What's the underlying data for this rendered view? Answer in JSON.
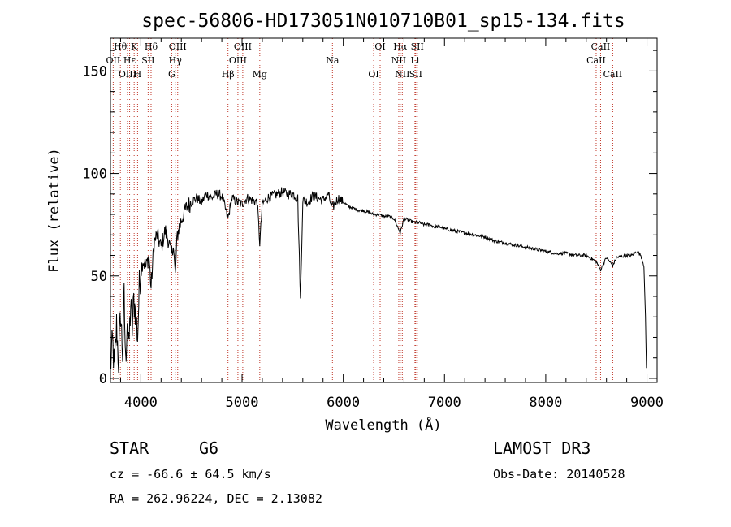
{
  "chart_data": {
    "type": "line",
    "title": "spec-56806-HD173051N010710B01_sp15-134.fits",
    "xlabel": "Wavelength (Å)",
    "ylabel": "Flux (relative)",
    "xlim": [
      3700,
      9100
    ],
    "ylim": [
      -2,
      166
    ],
    "x_ticks": [
      4000,
      5000,
      6000,
      7000,
      8000,
      9000
    ],
    "y_ticks": [
      0,
      50,
      100,
      150
    ],
    "grid": false,
    "series": [
      {
        "name": "spectrum",
        "anchors": [
          [
            3700,
            5
          ],
          [
            3720,
            18
          ],
          [
            3740,
            4
          ],
          [
            3760,
            26
          ],
          [
            3780,
            8
          ],
          [
            3800,
            32
          ],
          [
            3820,
            12
          ],
          [
            3835,
            40
          ],
          [
            3850,
            6
          ],
          [
            3865,
            30
          ],
          [
            3880,
            14
          ],
          [
            3900,
            36
          ],
          [
            3915,
            24
          ],
          [
            3930,
            38
          ],
          [
            3950,
            32
          ],
          [
            3968,
            20
          ],
          [
            3985,
            45
          ],
          [
            4000,
            52
          ],
          [
            4020,
            58
          ],
          [
            4050,
            54
          ],
          [
            4080,
            60
          ],
          [
            4101,
            44
          ],
          [
            4130,
            66
          ],
          [
            4160,
            70
          ],
          [
            4200,
            64
          ],
          [
            4240,
            72
          ],
          [
            4270,
            68
          ],
          [
            4300,
            60
          ],
          [
            4320,
            66
          ],
          [
            4340,
            50
          ],
          [
            4360,
            70
          ],
          [
            4380,
            74
          ],
          [
            4420,
            80
          ],
          [
            4460,
            84
          ],
          [
            4500,
            86
          ],
          [
            4550,
            88
          ],
          [
            4600,
            86
          ],
          [
            4650,
            90
          ],
          [
            4700,
            88
          ],
          [
            4750,
            90
          ],
          [
            4800,
            89
          ],
          [
            4861,
            78
          ],
          [
            4900,
            88
          ],
          [
            4950,
            86
          ],
          [
            5000,
            85
          ],
          [
            5050,
            88
          ],
          [
            5100,
            87
          ],
          [
            5150,
            86
          ],
          [
            5175,
            66
          ],
          [
            5200,
            85
          ],
          [
            5250,
            88
          ],
          [
            5300,
            89
          ],
          [
            5350,
            90
          ],
          [
            5400,
            91
          ],
          [
            5450,
            90
          ],
          [
            5500,
            90
          ],
          [
            5550,
            88
          ],
          [
            5577,
            38
          ],
          [
            5600,
            87
          ],
          [
            5650,
            86
          ],
          [
            5700,
            89
          ],
          [
            5750,
            88
          ],
          [
            5800,
            87
          ],
          [
            5850,
            90
          ],
          [
            5890,
            83
          ],
          [
            5950,
            88
          ],
          [
            6000,
            86
          ],
          [
            6050,
            84
          ],
          [
            6100,
            83
          ],
          [
            6150,
            82
          ],
          [
            6200,
            82
          ],
          [
            6250,
            81
          ],
          [
            6300,
            80
          ],
          [
            6350,
            80
          ],
          [
            6400,
            79
          ],
          [
            6450,
            79
          ],
          [
            6500,
            78
          ],
          [
            6563,
            71
          ],
          [
            6600,
            78
          ],
          [
            6650,
            77
          ],
          [
            6700,
            76
          ],
          [
            6750,
            76
          ],
          [
            6800,
            75
          ],
          [
            6850,
            75
          ],
          [
            6900,
            74
          ],
          [
            6950,
            74
          ],
          [
            7000,
            73
          ],
          [
            7100,
            72
          ],
          [
            7200,
            71
          ],
          [
            7300,
            70
          ],
          [
            7400,
            69
          ],
          [
            7500,
            67
          ],
          [
            7600,
            66
          ],
          [
            7700,
            65
          ],
          [
            7800,
            64
          ],
          [
            7900,
            63
          ],
          [
            8000,
            62
          ],
          [
            8100,
            61
          ],
          [
            8200,
            61
          ],
          [
            8300,
            60
          ],
          [
            8400,
            60
          ],
          [
            8498,
            57
          ],
          [
            8542,
            53
          ],
          [
            8600,
            59
          ],
          [
            8662,
            55
          ],
          [
            8700,
            59
          ],
          [
            8800,
            60
          ],
          [
            8850,
            60
          ],
          [
            8900,
            62
          ],
          [
            8940,
            60
          ],
          [
            8970,
            55
          ],
          [
            8985,
            30
          ],
          [
            8995,
            5
          ]
        ]
      }
    ],
    "line_markers": [
      {
        "label": "Hθ",
        "wl": 3798,
        "row": 0
      },
      {
        "label": "K",
        "wl": 3934,
        "row": 0
      },
      {
        "label": "Hδ",
        "wl": 4101,
        "row": 0
      },
      {
        "label": "OIII",
        "wl": 4364,
        "row": 0
      },
      {
        "label": "OIII",
        "wl": 5007,
        "row": 0
      },
      {
        "label": "OI",
        "wl": 6364,
        "row": 0
      },
      {
        "label": "Hα",
        "wl": 6563,
        "row": 0
      },
      {
        "label": "SII",
        "wl": 6731,
        "row": 0
      },
      {
        "label": "CaII",
        "wl": 8542,
        "row": 0
      },
      {
        "label": "OII",
        "wl": 3727,
        "row": 1
      },
      {
        "label": "Hε",
        "wl": 3889,
        "row": 1
      },
      {
        "label": "SII",
        "wl": 4072,
        "row": 1
      },
      {
        "label": "Hγ",
        "wl": 4340,
        "row": 1
      },
      {
        "label": "OIII",
        "wl": 4959,
        "row": 1
      },
      {
        "label": "Na",
        "wl": 5893,
        "row": 1
      },
      {
        "label": "NII",
        "wl": 6548,
        "row": 1
      },
      {
        "label": "Li",
        "wl": 6708,
        "row": 1
      },
      {
        "label": "CaII",
        "wl": 8498,
        "row": 1
      },
      {
        "label": "OIII",
        "wl": 3868,
        "row": 2
      },
      {
        "label": "H",
        "wl": 3968,
        "row": 2
      },
      {
        "label": "G",
        "wl": 4305,
        "row": 2
      },
      {
        "label": "Hβ",
        "wl": 4861,
        "row": 2
      },
      {
        "label": "Mg",
        "wl": 5175,
        "row": 2
      },
      {
        "label": "OI",
        "wl": 6300,
        "row": 2
      },
      {
        "label": "NII",
        "wl": 6583,
        "row": 2
      },
      {
        "label": "SII",
        "wl": 6716,
        "row": 2
      },
      {
        "label": "CaII",
        "wl": 8662,
        "row": 2
      }
    ]
  },
  "info": {
    "object_class": "STAR",
    "subclass": "G6",
    "cz_line": "cz = -66.6 ± 64.5 km/s",
    "radec_line": "RA = 262.96224, DEC =   2.13082",
    "survey": "LAMOST DR3",
    "obs_date": "Obs-Date: 20140528"
  }
}
